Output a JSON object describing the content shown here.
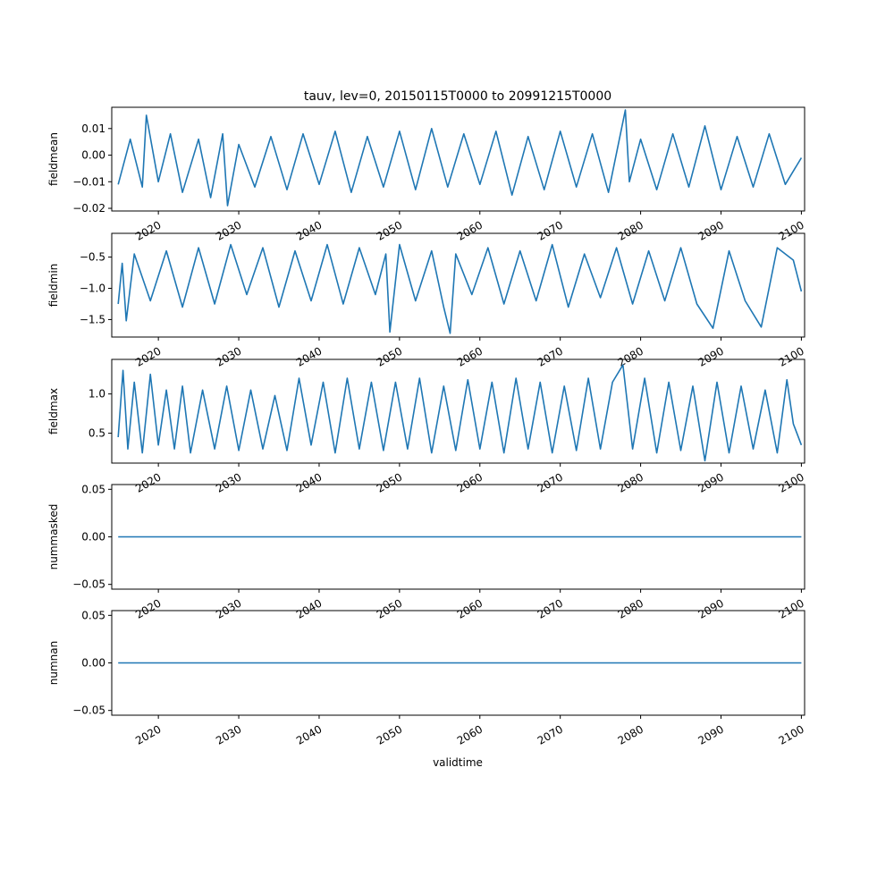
{
  "title": "tauv, lev=0, 20150115T0000 to 20991215T0000",
  "xlabel": "validtime",
  "x_tick_labels": [
    "2020",
    "2030",
    "2040",
    "2050",
    "2060",
    "2070",
    "2080",
    "2090",
    "2100"
  ],
  "colors": {
    "line": "#1f77b4",
    "axes": "#000000",
    "background": "#ffffff"
  },
  "chart_data": [
    {
      "type": "line",
      "ylabel": "fieldmean",
      "x_range": [
        "2015-01-15",
        "2099-12-15"
      ],
      "xlim": [
        2014.2,
        2100.4
      ],
      "ylim": [
        -0.021,
        0.018
      ],
      "yticks": [
        0.01,
        0.0,
        -0.01,
        -0.02
      ],
      "ytick_labels": [
        "0.01",
        "0.00",
        "−0.01",
        "−0.02"
      ],
      "series": [
        {
          "x": [
            2015.0,
            2016.5,
            2018.0,
            2018.5,
            2020.0,
            2021.5,
            2023.0,
            2025.0,
            2026.5,
            2028.0,
            2028.6,
            2030.0,
            2032.0,
            2034.0,
            2036.0,
            2038.0,
            2040.0,
            2042.0,
            2044.0,
            2046.0,
            2048.0,
            2050.0,
            2052.0,
            2054.0,
            2056.0,
            2058.0,
            2060.0,
            2062.0,
            2064.0,
            2066.0,
            2068.0,
            2070.0,
            2072.0,
            2074.0,
            2076.0,
            2078.1,
            2078.6,
            2080.0,
            2082.0,
            2084.0,
            2086.0,
            2088.0,
            2090.0,
            2092.0,
            2094.0,
            2096.0,
            2098.0,
            2100.0
          ],
          "y": [
            -0.011,
            0.006,
            -0.012,
            0.015,
            -0.01,
            0.008,
            -0.014,
            0.006,
            -0.016,
            0.008,
            -0.019,
            0.004,
            -0.012,
            0.007,
            -0.013,
            0.008,
            -0.011,
            0.009,
            -0.014,
            0.007,
            -0.012,
            0.009,
            -0.013,
            0.01,
            -0.012,
            0.008,
            -0.011,
            0.009,
            -0.015,
            0.007,
            -0.013,
            0.009,
            -0.012,
            0.008,
            -0.014,
            0.017,
            -0.01,
            0.006,
            -0.013,
            0.008,
            -0.012,
            0.011,
            -0.013,
            0.007,
            -0.012,
            0.008,
            -0.011,
            -0.001
          ]
        }
      ]
    },
    {
      "type": "line",
      "ylabel": "fieldmin",
      "x_range": [
        "2015-01-15",
        "2099-12-15"
      ],
      "xlim": [
        2014.2,
        2100.4
      ],
      "ylim": [
        -1.78,
        -0.12
      ],
      "yticks": [
        -0.5,
        -1.0,
        -1.5
      ],
      "ytick_labels": [
        "−0.5",
        "−1.0",
        "−1.5"
      ],
      "series": [
        {
          "x": [
            2015.0,
            2015.5,
            2016.0,
            2017.0,
            2019.0,
            2021.0,
            2023.0,
            2025.0,
            2027.0,
            2029.0,
            2031.0,
            2033.0,
            2035.0,
            2037.0,
            2039.0,
            2041.0,
            2043.0,
            2045.0,
            2047.0,
            2048.3,
            2048.8,
            2050.0,
            2052.0,
            2054.0,
            2055.5,
            2056.3,
            2057.0,
            2059.0,
            2061.0,
            2063.0,
            2065.0,
            2067.0,
            2069.0,
            2071.0,
            2073.0,
            2075.0,
            2077.0,
            2079.0,
            2081.0,
            2083.0,
            2085.0,
            2087.0,
            2089.0,
            2091.0,
            2093.0,
            2095.0,
            2097.0,
            2099.0,
            2100.0
          ],
          "y": [
            -1.25,
            -0.6,
            -1.52,
            -0.45,
            -1.2,
            -0.4,
            -1.3,
            -0.35,
            -1.25,
            -0.3,
            -1.1,
            -0.35,
            -1.3,
            -0.4,
            -1.2,
            -0.3,
            -1.25,
            -0.35,
            -1.1,
            -0.45,
            -1.7,
            -0.3,
            -1.2,
            -0.4,
            -1.3,
            -1.72,
            -0.45,
            -1.1,
            -0.35,
            -1.25,
            -0.4,
            -1.2,
            -0.3,
            -1.3,
            -0.45,
            -1.15,
            -0.35,
            -1.25,
            -0.4,
            -1.2,
            -0.35,
            -1.25,
            -1.64,
            -0.4,
            -1.2,
            -1.62,
            -0.35,
            -0.55,
            -1.05
          ]
        }
      ]
    },
    {
      "type": "line",
      "ylabel": "fieldmax",
      "x_range": [
        "2015-01-15",
        "2099-12-15"
      ],
      "xlim": [
        2014.2,
        2100.4
      ],
      "ylim": [
        0.12,
        1.44
      ],
      "yticks": [
        1.0,
        0.5
      ],
      "ytick_labels": [
        "1.0",
        "0.5"
      ],
      "series": [
        {
          "x": [
            2015.0,
            2015.6,
            2016.2,
            2017.0,
            2018.0,
            2019.0,
            2020.0,
            2021.0,
            2022.0,
            2023.0,
            2024.0,
            2025.5,
            2027.0,
            2028.5,
            2030.0,
            2031.5,
            2033.0,
            2034.5,
            2036.0,
            2037.5,
            2039.0,
            2040.5,
            2042.0,
            2043.5,
            2045.0,
            2046.5,
            2048.0,
            2049.5,
            2051.0,
            2052.5,
            2054.0,
            2055.5,
            2057.0,
            2058.5,
            2060.0,
            2061.5,
            2063.0,
            2064.5,
            2066.0,
            2067.5,
            2069.0,
            2070.5,
            2072.0,
            2073.5,
            2075.0,
            2076.5,
            2077.8,
            2079.0,
            2080.5,
            2082.0,
            2083.5,
            2085.0,
            2086.5,
            2088.0,
            2089.5,
            2091.0,
            2092.5,
            2094.0,
            2095.5,
            2097.0,
            2098.2,
            2099.0,
            2100.0
          ],
          "y": [
            0.45,
            1.3,
            0.3,
            1.15,
            0.25,
            1.25,
            0.35,
            1.05,
            0.3,
            1.1,
            0.25,
            1.05,
            0.3,
            1.1,
            0.28,
            1.05,
            0.3,
            0.98,
            0.28,
            1.2,
            0.35,
            1.15,
            0.25,
            1.2,
            0.3,
            1.15,
            0.28,
            1.15,
            0.3,
            1.2,
            0.25,
            1.1,
            0.28,
            1.18,
            0.3,
            1.15,
            0.25,
            1.2,
            0.3,
            1.15,
            0.25,
            1.1,
            0.28,
            1.2,
            0.3,
            1.15,
            1.37,
            0.3,
            1.2,
            0.25,
            1.15,
            0.28,
            1.1,
            0.15,
            1.15,
            0.25,
            1.1,
            0.3,
            1.05,
            0.25,
            1.18,
            0.62,
            0.35
          ]
        }
      ]
    },
    {
      "type": "line",
      "ylabel": "nummasked",
      "x_range": [
        "2015-01-15",
        "2099-12-15"
      ],
      "xlim": [
        2014.2,
        2100.4
      ],
      "ylim": [
        -0.055,
        0.055
      ],
      "yticks": [
        0.05,
        0.0,
        -0.05
      ],
      "ytick_labels": [
        "0.05",
        "0.00",
        "−0.05"
      ],
      "series": [
        {
          "x": [
            2015.0,
            2100.0
          ],
          "y": [
            0.0,
            0.0
          ]
        }
      ]
    },
    {
      "type": "line",
      "ylabel": "numnan",
      "x_range": [
        "2015-01-15",
        "2099-12-15"
      ],
      "xlim": [
        2014.2,
        2100.4
      ],
      "ylim": [
        -0.055,
        0.055
      ],
      "yticks": [
        0.05,
        0.0,
        -0.05
      ],
      "ytick_labels": [
        "0.05",
        "0.00",
        "−0.05"
      ],
      "series": [
        {
          "x": [
            2015.0,
            2100.0
          ],
          "y": [
            0.0,
            0.0
          ]
        }
      ]
    }
  ]
}
